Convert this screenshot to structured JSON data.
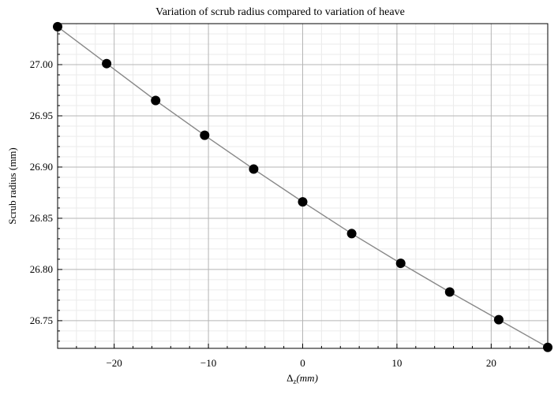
{
  "chart_data": {
    "type": "line",
    "title": "Variation of scrub radius compared to variation of heave",
    "xlabel": "Δz (mm)",
    "xlabel_main": "Δ",
    "xlabel_sub": "z",
    "xlabel_unit": "(mm)",
    "ylabel": "Scrub radius (mm)",
    "xlim": [
      -26.0,
      26.0
    ],
    "ylim": [
      26.723,
      27.04
    ],
    "x_ticks": [
      -20,
      -10,
      0,
      10,
      20
    ],
    "x_tick_labels": [
      "−20",
      "−10",
      "0",
      "10",
      "20"
    ],
    "y_ticks": [
      26.75,
      26.8,
      26.85,
      26.9,
      26.95,
      27.0
    ],
    "y_tick_labels": [
      "26.75",
      "26.80",
      "26.85",
      "26.90",
      "26.95",
      "27.00"
    ],
    "grid": true,
    "series": [
      {
        "x": [
          -26.0,
          -20.8,
          -15.6,
          -10.4,
          -5.2,
          0.0,
          5.2,
          10.4,
          15.6,
          20.8,
          26.0
        ],
        "y": [
          27.037,
          27.001,
          26.965,
          26.931,
          26.898,
          26.866,
          26.835,
          26.806,
          26.778,
          26.751,
          26.724
        ],
        "line_color": "#888888",
        "marker_color": "#000000"
      }
    ]
  }
}
